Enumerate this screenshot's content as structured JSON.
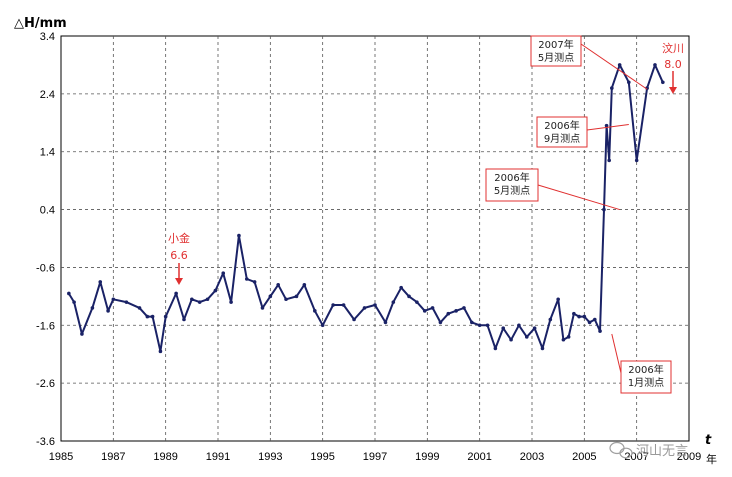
{
  "chart_data": {
    "type": "line",
    "ylabel": "△H/mm",
    "xlabel": "t",
    "x_unit": "年",
    "xlim": [
      1985,
      2009
    ],
    "ylim": [
      -3.6,
      3.4
    ],
    "xticks": [
      "1985",
      "1987",
      "1989",
      "1991",
      "1993",
      "1995",
      "1997",
      "1999",
      "2001",
      "2003",
      "2005",
      "2007",
      "2009"
    ],
    "yticks": [
      "3.4",
      "2.4",
      "1.4",
      "0.4",
      "-0.6",
      "-1.6",
      "-2.6",
      "-3.6"
    ],
    "grid": true,
    "series": [
      {
        "color": "#1a2266",
        "x": [
          1985.3,
          1985.5,
          1985.8,
          1986.2,
          1986.5,
          1986.8,
          1987.0,
          1987.5,
          1988.0,
          1988.3,
          1988.5,
          1988.8,
          1989.0,
          1989.4,
          1989.7,
          1990.0,
          1990.3,
          1990.6,
          1990.9,
          1991.2,
          1991.5,
          1991.8,
          1992.1,
          1992.4,
          1992.7,
          1993.0,
          1993.3,
          1993.6,
          1994.0,
          1994.3,
          1994.7,
          1995.0,
          1995.4,
          1995.8,
          1996.2,
          1996.6,
          1997.0,
          1997.4,
          1997.7,
          1998.0,
          1998.3,
          1998.6,
          1998.9,
          1999.2,
          1999.5,
          1999.8,
          2000.1,
          2000.4,
          2000.7,
          2001.0,
          2001.3,
          2001.6,
          2001.9,
          2002.2,
          2002.5,
          2002.8,
          2003.1,
          2003.4,
          2003.7,
          2004.0,
          2004.2,
          2004.4,
          2004.6,
          2004.8,
          2005.0,
          2005.2,
          2005.4,
          2005.6,
          2005.75,
          2005.85,
          2005.95,
          2006.05,
          2006.35,
          2006.7,
          2007.0,
          2007.4,
          2007.7,
          2008.0
        ],
        "y": [
          -1.05,
          -1.2,
          -1.75,
          -1.3,
          -0.85,
          -1.35,
          -1.15,
          -1.2,
          -1.3,
          -1.45,
          -1.45,
          -2.05,
          -1.45,
          -1.05,
          -1.5,
          -1.15,
          -1.2,
          -1.15,
          -1.0,
          -0.7,
          -1.2,
          -0.05,
          -0.8,
          -0.85,
          -1.3,
          -1.1,
          -0.9,
          -1.15,
          -1.1,
          -0.9,
          -1.35,
          -1.6,
          -1.25,
          -1.25,
          -1.5,
          -1.3,
          -1.25,
          -1.55,
          -1.2,
          -0.95,
          -1.1,
          -1.2,
          -1.35,
          -1.3,
          -1.55,
          -1.4,
          -1.35,
          -1.3,
          -1.55,
          -1.6,
          -1.6,
          -2.0,
          -1.65,
          -1.85,
          -1.6,
          -1.8,
          -1.65,
          -2.0,
          -1.5,
          -1.15,
          -1.85,
          -1.8,
          -1.4,
          -1.45,
          -1.45,
          -1.55,
          -1.5,
          -1.7,
          0.4,
          1.85,
          1.25,
          2.5,
          2.9,
          2.6,
          1.25,
          2.5,
          2.9,
          2.6
        ]
      }
    ],
    "annotations": [
      {
        "lines": [
          "2007年",
          "5月测点"
        ]
      },
      {
        "lines": [
          "2006年",
          "9月测点"
        ]
      },
      {
        "lines": [
          "2006年",
          "5月测点"
        ]
      },
      {
        "lines": [
          "2006年",
          "1月测点"
        ]
      }
    ],
    "earthquakes": [
      {
        "name": "小金",
        "mag": "6.6"
      },
      {
        "name": "汶川",
        "mag": "8.0"
      }
    ]
  },
  "watermark": "河山无言",
  "colors": {
    "line": "#1a2266",
    "annotation": "#e03030",
    "grid": "#555555"
  }
}
